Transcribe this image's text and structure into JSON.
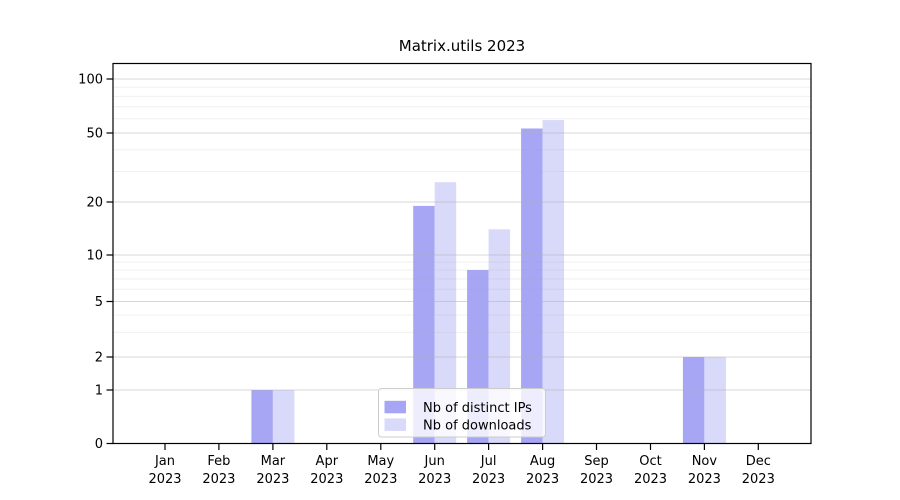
{
  "chart_data": {
    "type": "bar",
    "title": "Matrix.utils 2023",
    "categories": [
      "Jan 2023",
      "Feb 2023",
      "Mar 2023",
      "Apr 2023",
      "May 2023",
      "Jun 2023",
      "Jul 2023",
      "Aug 2023",
      "Sep 2023",
      "Oct 2023",
      "Nov 2023",
      "Dec 2023"
    ],
    "series": [
      {
        "name": "Nb of distinct IPs",
        "color": "#a6a6f4",
        "values": [
          0,
          0,
          1,
          0,
          0,
          19,
          8,
          53,
          0,
          0,
          2,
          0
        ]
      },
      {
        "name": "Nb of downloads",
        "color": "#d9d9fa",
        "values": [
          0,
          0,
          1,
          0,
          0,
          26,
          14,
          59,
          0,
          0,
          2,
          0
        ]
      }
    ],
    "yaxis": {
      "scale": "symlog",
      "major_ticks": [
        0,
        1,
        2,
        5,
        10,
        20,
        50,
        100
      ],
      "minor_gridlines": [
        3,
        4,
        6,
        7,
        8,
        9,
        30,
        40,
        60,
        70,
        80,
        90
      ],
      "range": [
        0,
        125
      ]
    },
    "xlabel": "",
    "ylabel": "",
    "grid": true,
    "legend": {
      "position": "lower center"
    },
    "colors": {
      "grid": "#b0b0b0",
      "axis": "#000000",
      "legend_border": "#cccccc",
      "legend_fill": "rgba(255,255,255,0.8)"
    }
  }
}
